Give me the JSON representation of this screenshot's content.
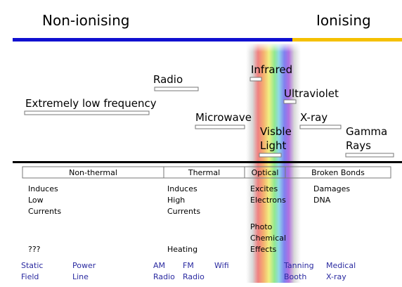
{
  "header": {
    "left": "Non-ionising",
    "right": "Ionising"
  },
  "bands": [
    {
      "lines": [
        "Extremely low frequency"
      ]
    },
    {
      "lines": [
        "Radio"
      ]
    },
    {
      "lines": [
        "Microwave"
      ]
    },
    {
      "lines": [
        "Infrared"
      ]
    },
    {
      "lines": [
        "Visble",
        "Light"
      ]
    },
    {
      "lines": [
        "Ultraviolet"
      ]
    },
    {
      "lines": [
        "X-ray"
      ]
    },
    {
      "lines": [
        "Gamma",
        "Rays"
      ]
    }
  ],
  "columns": [
    {
      "title": "Non-thermal",
      "effects": [
        "Induces",
        "Low",
        "Currents"
      ],
      "extra": [
        "???"
      ]
    },
    {
      "title": "Thermal",
      "effects": [
        "Induces",
        "High",
        "Currents"
      ],
      "extra": [
        "Heating"
      ]
    },
    {
      "title": "Optical",
      "effects": [
        "Excites",
        "Electrons"
      ],
      "extra": [
        "Photo",
        "Chemical",
        "Effects"
      ]
    },
    {
      "title": "Broken Bonds",
      "effects": [
        "Damages",
        "DNA"
      ],
      "extra": []
    }
  ],
  "examples": [
    {
      "lines": [
        "Static",
        "Field"
      ]
    },
    {
      "lines": [
        "Power",
        "Line"
      ]
    },
    {
      "lines": [
        "AM",
        "Radio"
      ]
    },
    {
      "lines": [
        "FM",
        "Radio"
      ]
    },
    {
      "lines": [
        "Wifi"
      ]
    },
    {
      "lines": [
        "Tanning",
        "Booth"
      ]
    },
    {
      "lines": [
        "Medical",
        "X-ray"
      ]
    }
  ]
}
